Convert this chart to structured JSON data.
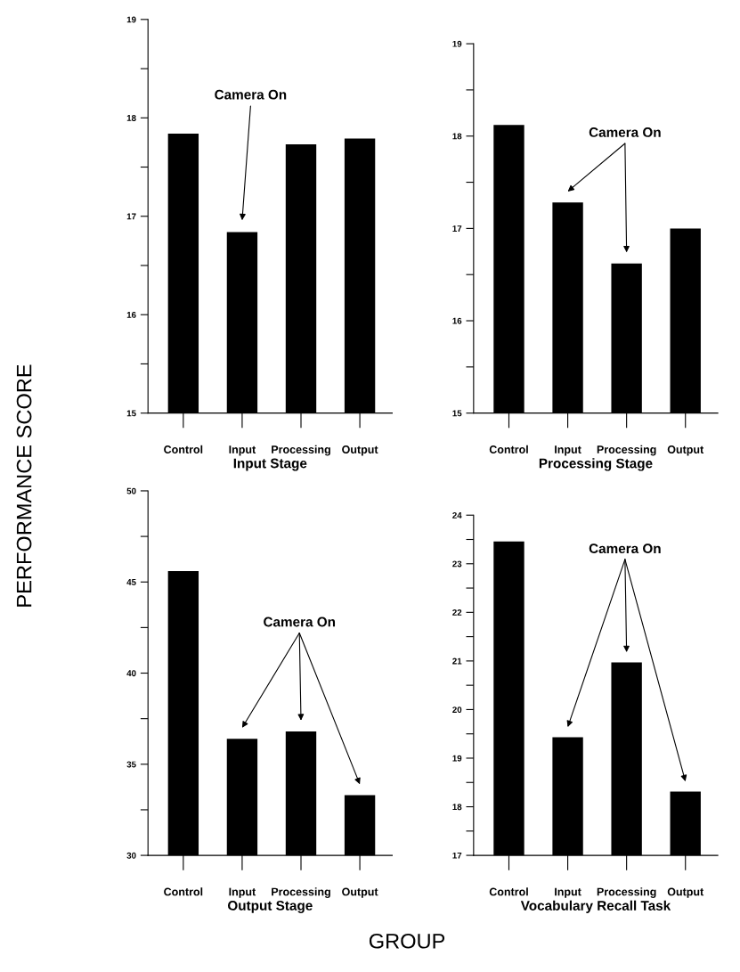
{
  "chart_data": [
    {
      "type": "bar",
      "xlabel": "Input Stage",
      "ylabel": "PERFORMANCE SCORE",
      "categories": [
        "Control",
        "Input",
        "Processing",
        "Output"
      ],
      "values": [
        17.84,
        16.84,
        17.73,
        17.79
      ],
      "color": "#000000",
      "ylim": [
        15,
        19
      ],
      "yticks": [
        15,
        {
          "value": 15.5,
          "label": null
        },
        16,
        {
          "value": 16.5,
          "label": null
        },
        17,
        {
          "value": 17.5,
          "label": null
        },
        18,
        {
          "value": 18.5,
          "label": null
        },
        19
      ],
      "annotations": [
        "Camera On",
        "GROUP"
      ]
    },
    {
      "type": "bar",
      "xlabel": "Processing Stage",
      "categories": [
        "Control",
        "Input",
        "Processing",
        "Output"
      ],
      "values": [
        18.12,
        17.28,
        16.62,
        17.0
      ],
      "color": "#000000",
      "ylim": [
        15,
        19
      ],
      "yticks": [
        15,
        {
          "value": 15.5,
          "label": null
        },
        16,
        {
          "value": 16.5,
          "label": null
        },
        17,
        {
          "value": 17.5,
          "label": null
        },
        18,
        {
          "value": 18.5,
          "label": null
        },
        19
      ],
      "annotations": [
        "Camera On"
      ]
    },
    {
      "type": "bar",
      "xlabel": "Output Stage",
      "categories": [
        "Control",
        "Input",
        "Processing",
        "Output"
      ],
      "values": [
        45.6,
        36.4,
        36.8,
        33.3
      ],
      "color": "#000000",
      "ylim": [
        30,
        50
      ],
      "yticks": [
        30,
        {
          "value": 32.5,
          "label": null
        },
        35,
        {
          "value": 37.5,
          "label": null
        },
        40,
        {
          "value": 42.5,
          "label": null
        },
        45,
        {
          "value": 47.5,
          "label": null
        },
        50
      ],
      "annotations": [
        "Camera On"
      ]
    },
    {
      "type": "bar",
      "xlabel": "Vocabulary Recall Task",
      "categories": [
        "Control",
        "Input",
        "Processing",
        "Output"
      ],
      "values": [
        23.46,
        19.43,
        20.97,
        18.31
      ],
      "color": "#000000",
      "ylim": [
        17,
        24
      ],
      "yticks": [
        17,
        {
          "value": 17.5,
          "label": null
        },
        18,
        {
          "value": 18.5,
          "label": null
        },
        19,
        {
          "value": 19.5,
          "label": null
        },
        20,
        {
          "value": 20.5,
          "label": null
        },
        21,
        {
          "value": 21.5,
          "label": null
        },
        22,
        {
          "value": 22.5,
          "label": null
        },
        23,
        {
          "value": 23.5,
          "label": null
        },
        24
      ],
      "annotations": [
        "Camera On"
      ]
    }
  ]
}
